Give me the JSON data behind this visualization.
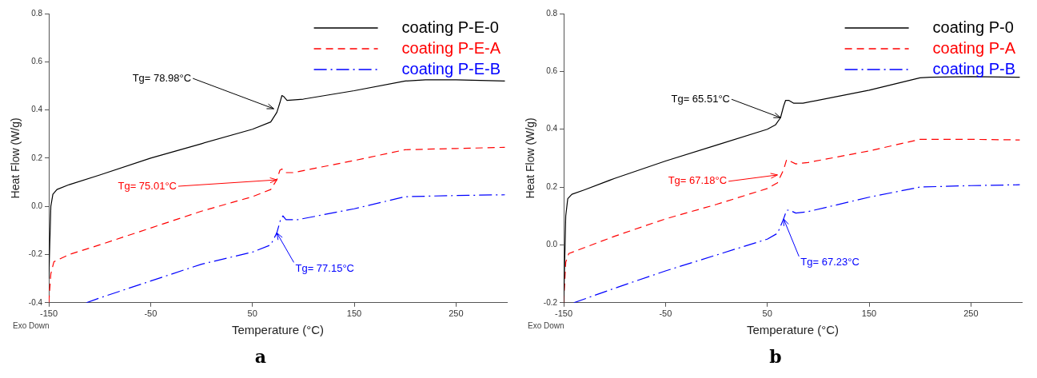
{
  "chart_data": [
    {
      "type": "line",
      "title": "a",
      "xlabel": "Temperature (°C)",
      "ylabel": "Heat Flow (W/g)",
      "xlim": [
        -150,
        300
      ],
      "xticks": [
        -150,
        -50,
        50,
        150,
        250
      ],
      "ylim": [
        -0.4,
        0.8
      ],
      "yticks": [
        -0.4,
        -0.2,
        {
          "value": 0,
          "label": "0.0"
        },
        0.2,
        0.4,
        0.6,
        0.8
      ],
      "legend": "top right",
      "grid": false,
      "marker": "none",
      "series": [
        {
          "name": "coating P-E-0",
          "color": "#000000",
          "line_style": "solid",
          "x": [
            -150,
            -148,
            -146,
            -142,
            -130,
            -100,
            -50,
            0,
            50,
            68,
            74,
            77,
            79,
            81,
            84,
            100,
            150,
            200,
            220,
            250,
            298
          ],
          "values": [
            -0.3,
            0.0,
            0.05,
            0.07,
            0.09,
            0.13,
            0.2,
            0.26,
            0.32,
            0.35,
            0.39,
            0.43,
            0.46,
            0.455,
            0.44,
            0.445,
            0.48,
            0.52,
            0.525,
            0.525,
            0.52
          ]
        },
        {
          "name": "coating P-E-A",
          "color": "#ff0000",
          "line_style": "dashed",
          "x": [
            -150,
            -148,
            -145,
            -130,
            -100,
            -50,
            0,
            50,
            68,
            74,
            77,
            79,
            82,
            90,
            150,
            200,
            250,
            298
          ],
          "values": [
            -0.4,
            -0.28,
            -0.23,
            -0.2,
            -0.16,
            -0.09,
            -0.02,
            0.04,
            0.07,
            0.11,
            0.15,
            0.155,
            0.14,
            0.14,
            0.19,
            0.235,
            0.24,
            0.245
          ]
        },
        {
          "name": "coating P-E-B",
          "color": "#0000ff",
          "line_style": "dashdot",
          "x": [
            -113,
            -100,
            -50,
            0,
            50,
            68,
            74,
            78,
            80,
            83,
            95,
            150,
            200,
            250,
            298
          ],
          "values": [
            -0.4,
            -0.38,
            -0.31,
            -0.24,
            -0.19,
            -0.16,
            -0.11,
            -0.05,
            -0.04,
            -0.055,
            -0.055,
            -0.01,
            0.04,
            0.045,
            0.048
          ]
        }
      ],
      "annotations": [
        {
          "text": "Tg= 78.98°C",
          "x": 71,
          "y": 0.405
        },
        {
          "text": "Tg= 75.01°C",
          "x": 74,
          "y": 0.11
        },
        {
          "text": "Tg= 77.15°C",
          "x": 74,
          "y": -0.11
        },
        "Exo Down"
      ]
    },
    {
      "type": "line",
      "title": "b",
      "xlabel": "Temperature (°C)",
      "ylabel": "Heat Flow (W/g)",
      "xlim": [
        -150,
        300
      ],
      "xticks": [
        -150,
        -50,
        50,
        150,
        250
      ],
      "ylim": [
        -0.2,
        0.8
      ],
      "yticks": [
        -0.2,
        {
          "value": 0,
          "label": "0.0"
        },
        0.2,
        0.4,
        0.6,
        0.8
      ],
      "legend": "top right",
      "grid": false,
      "marker": "none",
      "series": [
        {
          "name": "coating P-0",
          "color": "#000000",
          "line_style": "solid",
          "x": [
            -150,
            -148,
            -146,
            -142,
            -130,
            -100,
            -50,
            0,
            50,
            58,
            63,
            66,
            68,
            71,
            76,
            85,
            150,
            200,
            210,
            250,
            298
          ],
          "values": [
            -0.2,
            0.1,
            0.16,
            0.175,
            0.19,
            0.23,
            0.29,
            0.345,
            0.4,
            0.415,
            0.44,
            0.48,
            0.5,
            0.5,
            0.49,
            0.49,
            0.535,
            0.578,
            0.58,
            0.582,
            0.58
          ]
        },
        {
          "name": "coating P-A",
          "color": "#ff0000",
          "line_style": "dashed",
          "x": [
            -150,
            -148,
            -145,
            -130,
            -100,
            -50,
            0,
            50,
            60,
            66,
            69,
            72,
            78,
            90,
            150,
            200,
            250,
            298
          ],
          "values": [
            -0.2,
            -0.06,
            -0.03,
            -0.01,
            0.03,
            0.09,
            0.14,
            0.195,
            0.215,
            0.26,
            0.295,
            0.29,
            0.28,
            0.285,
            0.325,
            0.365,
            0.365,
            0.363
          ]
        },
        {
          "name": "coating P-B",
          "color": "#0000ff",
          "line_style": "dashdot",
          "x": [
            -140,
            -100,
            -50,
            0,
            50,
            60,
            66,
            69,
            72,
            78,
            90,
            150,
            200,
            250,
            298
          ],
          "values": [
            -0.2,
            -0.15,
            -0.09,
            -0.035,
            0.02,
            0.04,
            0.09,
            0.12,
            0.12,
            0.11,
            0.115,
            0.165,
            0.2,
            0.205,
            0.208
          ]
        }
      ],
      "annotations": [
        {
          "text": "Tg= 65.51°C",
          "x": 63,
          "y": 0.44
        },
        {
          "text": "Tg= 67.18°C",
          "x": 60,
          "y": 0.242
        },
        {
          "text": "Tg= 67.23°C",
          "x": 66,
          "y": 0.09
        },
        "Exo Down"
      ]
    }
  ]
}
